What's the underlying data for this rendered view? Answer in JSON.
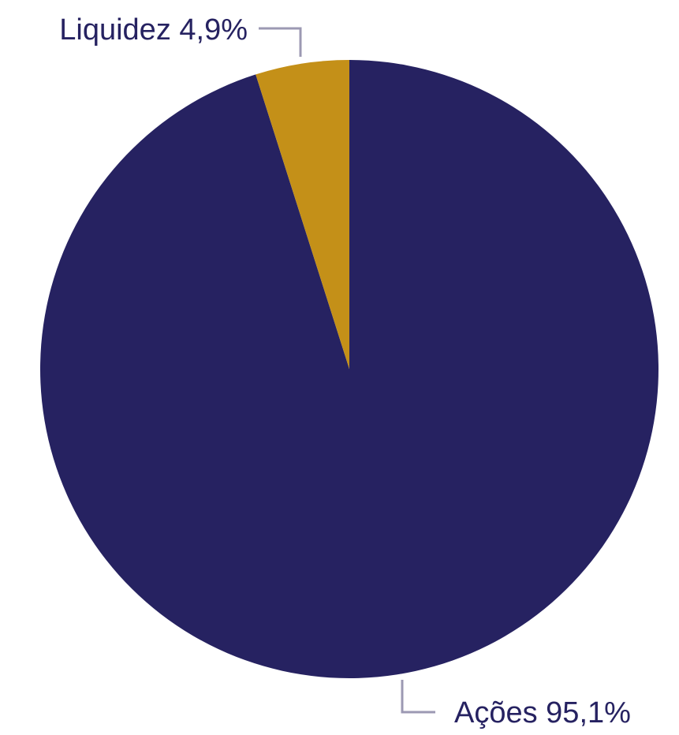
{
  "chart_data": {
    "type": "pie",
    "title": "",
    "start_angle_deg": 0,
    "direction": "clockwise",
    "slices": [
      {
        "label": "Ações",
        "value": 95.1,
        "display": "95,1%",
        "color": "#262261"
      },
      {
        "label": "Liquidez",
        "value": 4.9,
        "display": "4,9%",
        "color": "#c49018"
      }
    ]
  }
}
